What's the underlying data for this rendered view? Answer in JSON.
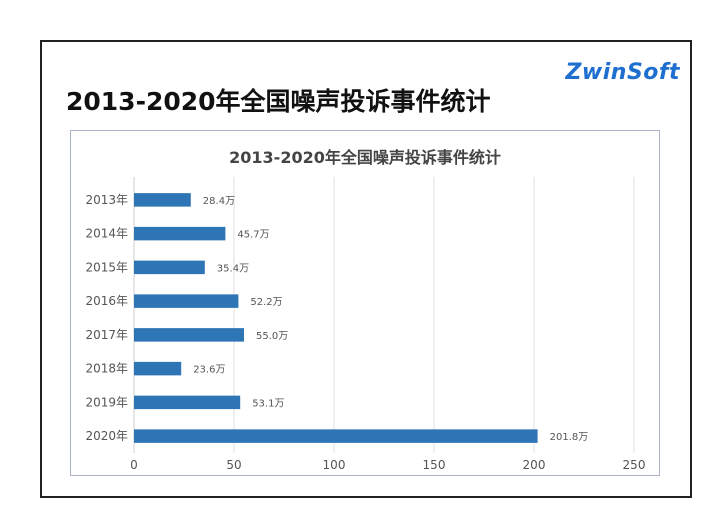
{
  "slide": {
    "title": "2013-2020年全国噪声投诉事件统计",
    "logo_text": "ZwinSoft",
    "accent_color": "#2e75b6"
  },
  "chart_data": {
    "type": "bar",
    "orientation": "horizontal",
    "title": "2013-2020年全国噪声投诉事件统计",
    "categories": [
      "2013年",
      "2014年",
      "2015年",
      "2016年",
      "2017年",
      "2018年",
      "2019年",
      "2020年"
    ],
    "values": [
      28.4,
      45.7,
      35.4,
      52.2,
      55.0,
      23.6,
      53.1,
      201.8
    ],
    "data_labels": [
      "28.4万",
      "45.7万",
      "35.4万",
      "52.2万",
      "55.0万",
      "23.6万",
      "53.1万",
      "201.8万"
    ],
    "xlim": [
      0,
      250
    ],
    "xticks": [
      0,
      50,
      100,
      150,
      200,
      250
    ],
    "xlabel": "",
    "ylabel": "",
    "grid": "vertical",
    "bar_color": "#2e75b6"
  }
}
